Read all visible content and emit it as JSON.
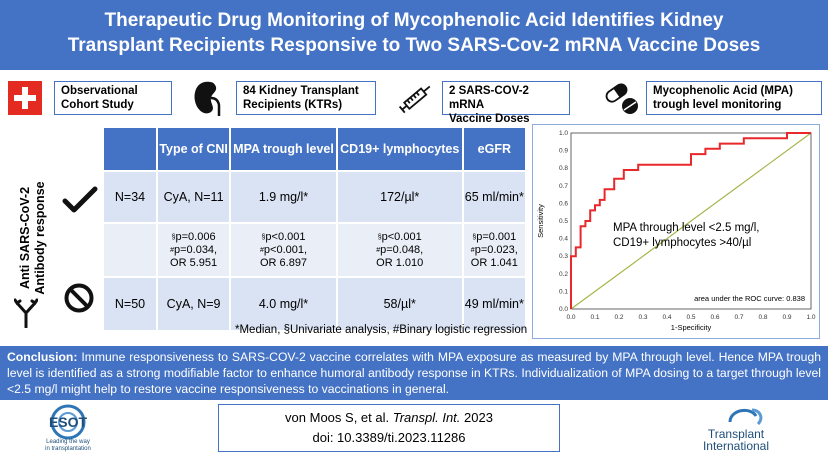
{
  "header": {
    "title_line1": "Therapeutic Drug Monitoring of Mycophenolic Acid Identifies Kidney",
    "title_line2": "Transplant Recipients Responsive to Two SARS-Cov-2 mRNA Vaccine Doses"
  },
  "features": [
    {
      "icon": "swiss-cross-icon",
      "line1": "Observational",
      "line2": "Cohort Study"
    },
    {
      "icon": "kidney-icon",
      "line1": "84 Kidney Transplant",
      "line2": "Recipients (KTRs)"
    },
    {
      "icon": "syringe-icon",
      "line1": "2 SARS-COV-2 mRNA",
      "line2": "Vaccine Doses"
    },
    {
      "icon": "pills-icon",
      "line1": "Mycophenolic Acid (MPA)",
      "line2": "trough level monitoring"
    }
  ],
  "side_label": {
    "line1": "Anti SARS-CoV-2",
    "line2": "Antibody response"
  },
  "table": {
    "headers": [
      "Type of CNI",
      "MPA trough level",
      "CD19+ lymphocytes",
      "eGFR"
    ],
    "responders": {
      "n": "N=34",
      "cni": "CyA, N=11",
      "mpa": "1.9 mg/l*",
      "cd19": "172/µl*",
      "egfr": "65 ml/min*"
    },
    "stats": {
      "cni": {
        "p1": "p=0.006",
        "p2": "p=0.034,",
        "or": "OR 5.951"
      },
      "mpa": {
        "p1": "p<0.001",
        "p2": "p<0.001,",
        "or": "OR 6.897"
      },
      "cd19": {
        "p1": "p<0.001",
        "p2": "p=0.048,",
        "or": "OR 1.010"
      },
      "egfr": {
        "p1": "p=0.001",
        "p2": "p=0.023,",
        "or": "OR 1.041"
      }
    },
    "nonresponders": {
      "n": "N=50",
      "cni": "CyA, N=9",
      "mpa": "4.0 mg/l*",
      "cd19": "58/µl*",
      "egfr": "49 ml/min*"
    },
    "sup_s": "§",
    "sup_h": "#"
  },
  "footnote": "*Median, §Univariate analysis, #Binary logistic regression",
  "roc": {
    "annotation_line1": "MPA through level <2.5 mg/l,",
    "annotation_line2": "CD19+ lymphocytes >40/µl",
    "auc": "area under the ROC curve: 0.838",
    "ylabel": "Sensitivity",
    "xlabel": "1-Specificity",
    "ticks": [
      "0.0",
      "0.1",
      "0.2",
      "0.3",
      "0.4",
      "0.5",
      "0.6",
      "0.7",
      "0.8",
      "0.9",
      "1.0"
    ],
    "curve_color": "#e8282a",
    "diag_color": "#a8b44a"
  },
  "chart_data": {
    "type": "line",
    "title": "",
    "xlabel": "1-Specificity",
    "ylabel": "Sensitivity",
    "xlim": [
      0,
      1
    ],
    "ylim": [
      0,
      1
    ],
    "series": [
      {
        "x": [
          0.0,
          0.0,
          0.02,
          0.02,
          0.04,
          0.04,
          0.06,
          0.06,
          0.08,
          0.08,
          0.1,
          0.1,
          0.12,
          0.12,
          0.14,
          0.14,
          0.18,
          0.18,
          0.22,
          0.22,
          0.28,
          0.28,
          0.38,
          0.38,
          0.5,
          0.5,
          0.56,
          0.56,
          0.62,
          0.62,
          0.72,
          0.72,
          0.8,
          0.8,
          0.9,
          0.9,
          1.0
        ],
        "y": [
          0.0,
          0.3,
          0.3,
          0.35,
          0.35,
          0.47,
          0.47,
          0.5,
          0.5,
          0.56,
          0.56,
          0.59,
          0.59,
          0.62,
          0.62,
          0.68,
          0.68,
          0.74,
          0.74,
          0.79,
          0.79,
          0.82,
          0.82,
          0.82,
          0.82,
          0.88,
          0.88,
          0.91,
          0.91,
          0.94,
          0.94,
          0.97,
          0.97,
          0.97,
          0.97,
          1.0,
          1.0
        ]
      },
      {
        "x": [
          0,
          1
        ],
        "y": [
          0,
          1
        ]
      }
    ],
    "annotations": [
      "MPA through level <2.5 mg/l,",
      "CD19+ lymphocytes >40/µl",
      "area under the ROC curve: 0.838"
    ]
  },
  "conclusion": {
    "label": "Conclusion:",
    "text": " Immune responsiveness to SARS-COV-2 vaccine correlates with MPA exposure as measured by MPA through level. Hence MPA trough level is identified as a strong modifiable factor to enhance humoral antibody response in KTRs. Individualization of MPA dosing to a target through level <2.5 mg/l might help to restore vaccine responsiveness to vaccinations in general."
  },
  "citation": {
    "authors": "von Moos S, et al. ",
    "journal": "Transpl. Int.",
    "year": " 2023",
    "doi": "doi: 10.3389/ti.2023.11286"
  },
  "logos": {
    "esot": "ESOT",
    "esot_tag1": "Leading the way",
    "esot_tag2": "in transplantation",
    "ti1": "Transplant",
    "ti2": "International"
  }
}
